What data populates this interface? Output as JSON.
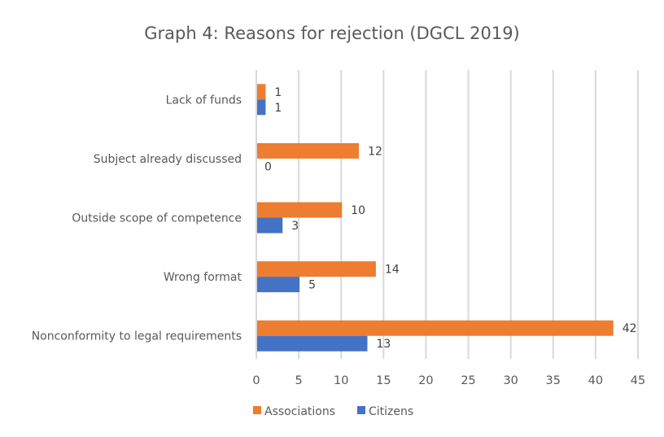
{
  "chart_data": {
    "type": "bar",
    "orientation": "horizontal",
    "title": "Graph 4: Reasons for rejection (DGCL 2019)",
    "xlabel": "",
    "ylabel": "",
    "categories": [
      "Nonconformity to legal requirements",
      "Wrong format",
      "Outside scope of competence",
      "Subject already discussed",
      "Lack of funds"
    ],
    "series": [
      {
        "name": "Associations",
        "color": "#ED7D31",
        "values": [
          42,
          14,
          10,
          12,
          1
        ]
      },
      {
        "name": "Citizens",
        "color": "#4472C4",
        "values": [
          13,
          5,
          3,
          0,
          1
        ]
      }
    ],
    "xlim": [
      0,
      45
    ],
    "xticks": [
      0,
      5,
      10,
      15,
      20,
      25,
      30,
      35,
      40,
      45
    ],
    "grid": true,
    "data_labels": true,
    "legend_position": "bottom"
  }
}
